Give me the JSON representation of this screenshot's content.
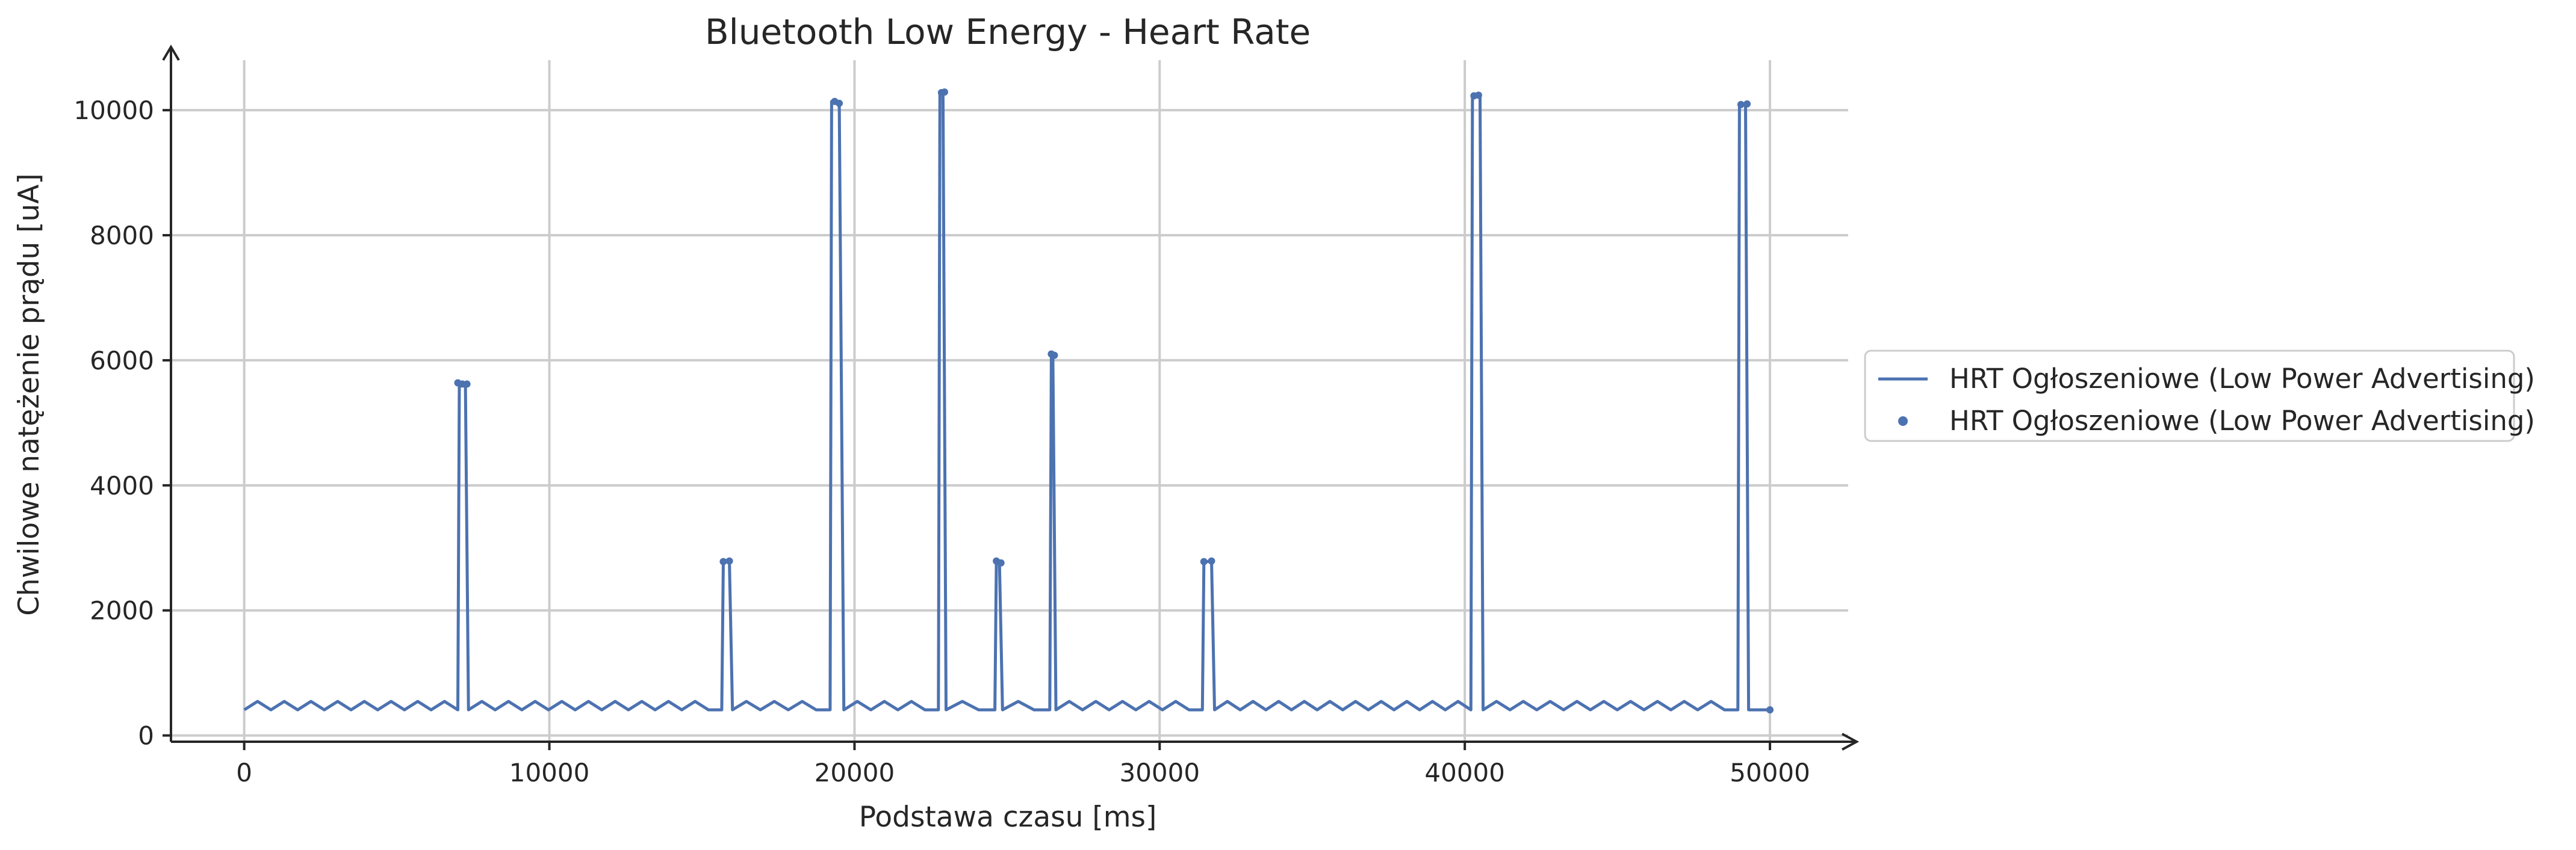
{
  "chart_data": {
    "type": "line",
    "title": "Bluetooth Low Energy - Heart Rate",
    "xlabel": "Podstawa czasu [ms]",
    "ylabel": "Chwilowe natężenie prądu [uA]",
    "xlim": [
      -2400,
      52800
    ],
    "ylim": [
      -100,
      10800
    ],
    "x_ticks": [
      0,
      10000,
      20000,
      30000,
      40000,
      50000
    ],
    "y_ticks": [
      0,
      2000,
      4000,
      6000,
      8000,
      10000
    ],
    "grid": true,
    "legend_position": "outside-right",
    "series": [
      {
        "name": "HRT Ogłoszeniowe (Low Power Advertising)",
        "style": "line",
        "color": "#4c72b0",
        "x": [
          0,
          7000,
          7050,
          7150,
          7250,
          7350,
          15650,
          15700,
          15800,
          15900,
          16000,
          19200,
          19250,
          19350,
          19500,
          19650,
          22750,
          22800,
          22900,
          23000,
          24600,
          24650,
          24750,
          24850,
          26400,
          26450,
          26500,
          26600,
          31400,
          31450,
          31550,
          31700,
          31800,
          40200,
          40250,
          40350,
          40500,
          40600,
          48950,
          49000,
          49100,
          49200,
          49300,
          50000
        ],
        "y": [
          410,
          410,
          5640,
          5620,
          5620,
          410,
          410,
          2780,
          2800,
          2780,
          410,
          410,
          10140,
          10120,
          10110,
          410,
          410,
          10270,
          10290,
          410,
          410,
          2790,
          2760,
          410,
          410,
          6100,
          6080,
          410,
          410,
          2780,
          2780,
          2790,
          410,
          410,
          10230,
          10240,
          10230,
          410,
          410,
          10090,
          10090,
          10100,
          410,
          410
        ]
      },
      {
        "name": "HRT Ogłoszeniowe (Low Power Advertising)",
        "style": "points",
        "color": "#4c72b0",
        "x": [
          7000,
          7150,
          7300,
          15700,
          15900,
          19350,
          19500,
          22850,
          22950,
          24650,
          24800,
          26450,
          26550,
          31450,
          31700,
          40300,
          40450,
          49050,
          49250,
          50000
        ],
        "y": [
          5640,
          5620,
          5620,
          2780,
          2790,
          10140,
          10110,
          10280,
          10290,
          2790,
          2760,
          6100,
          6080,
          2780,
          2790,
          10230,
          10240,
          10090,
          10100,
          410
        ]
      }
    ]
  }
}
